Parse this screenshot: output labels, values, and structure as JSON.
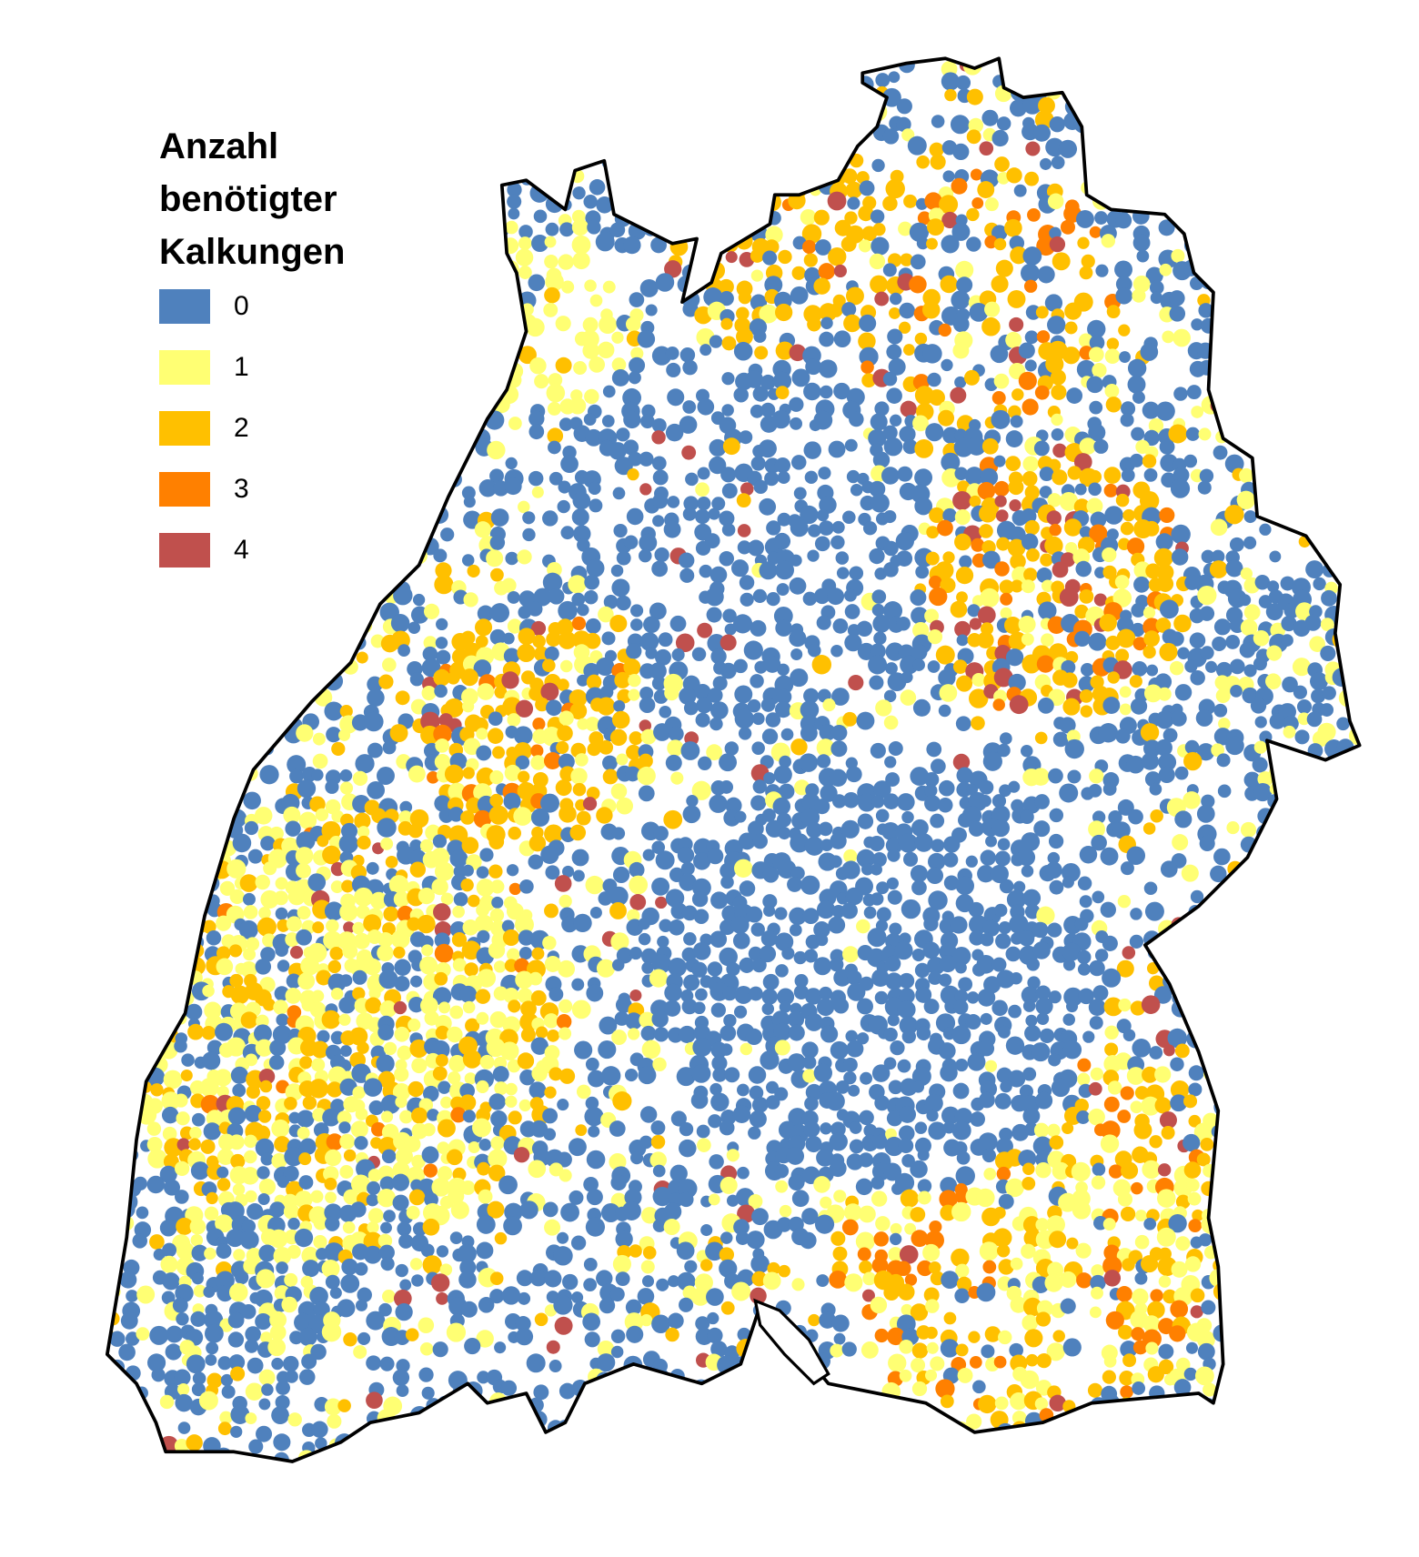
{
  "legend": {
    "title_lines": [
      "Anzahl",
      "benötigter",
      "Kalkungen"
    ],
    "items": [
      {
        "label": "0",
        "color": "#4f81bd"
      },
      {
        "label": "1",
        "color": "#ffff73"
      },
      {
        "label": "2",
        "color": "#ffc000"
      },
      {
        "label": "3",
        "color": "#ff8000"
      },
      {
        "label": "4",
        "color": "#c0504d"
      }
    ]
  },
  "map": {
    "background_color": "#ffffff",
    "outline_color": "#000000"
  }
}
